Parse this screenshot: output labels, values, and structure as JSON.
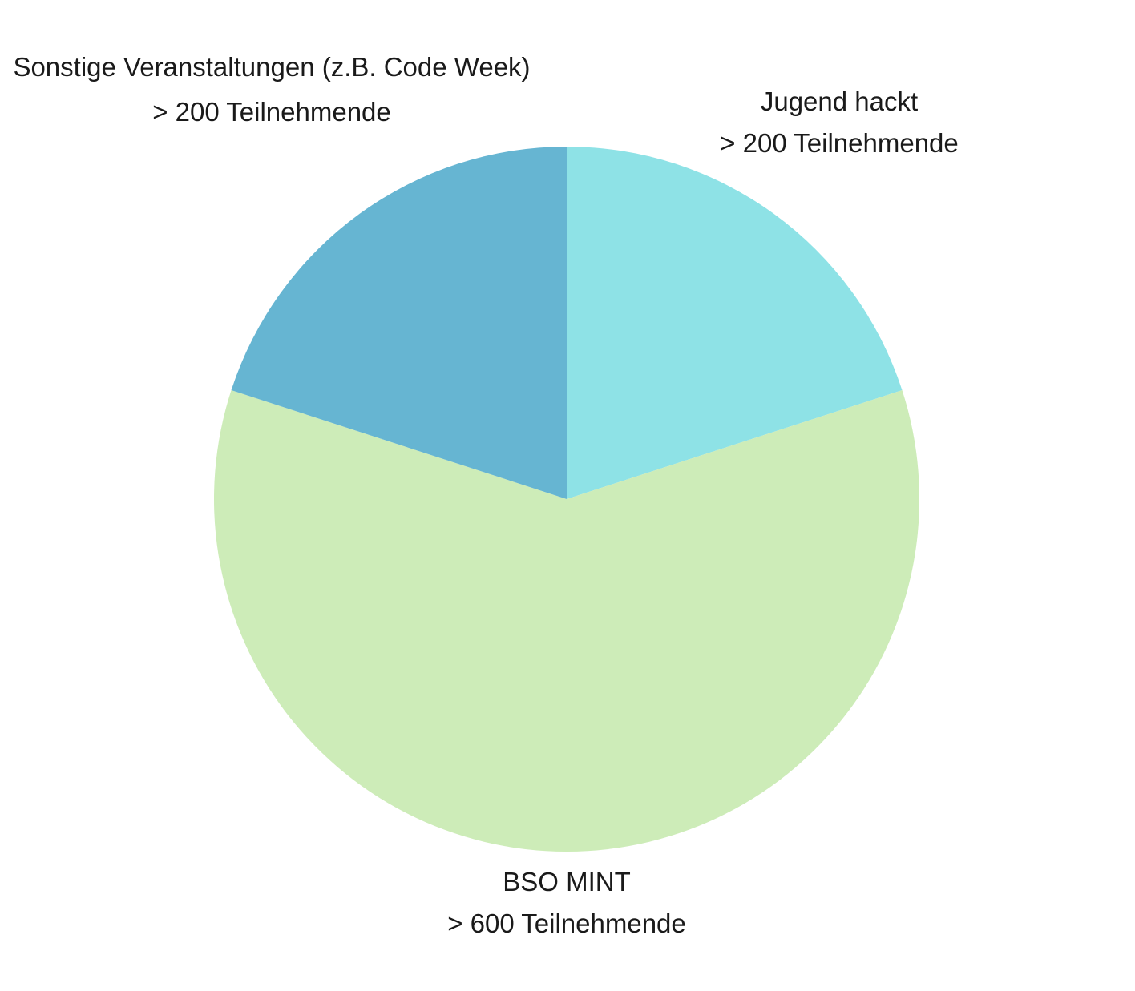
{
  "chart_data": {
    "type": "pie",
    "title": "",
    "slices": [
      {
        "category": "Jugend hackt",
        "detail": "> 200 Teilnehmende",
        "value": 200,
        "color": "#8ee2e6"
      },
      {
        "category": "BSO MINT",
        "detail": "> 600 Teilnehmende",
        "value": 600,
        "color": "#cdecb8"
      },
      {
        "category": "Sonstige Veranstaltungen (z.B. Code Week)",
        "detail": "> 200 Teilnehmende",
        "value": 200,
        "color": "#66b5d2"
      }
    ],
    "start_angle": "12 o'clock",
    "direction": "clockwise",
    "legend": "none"
  }
}
